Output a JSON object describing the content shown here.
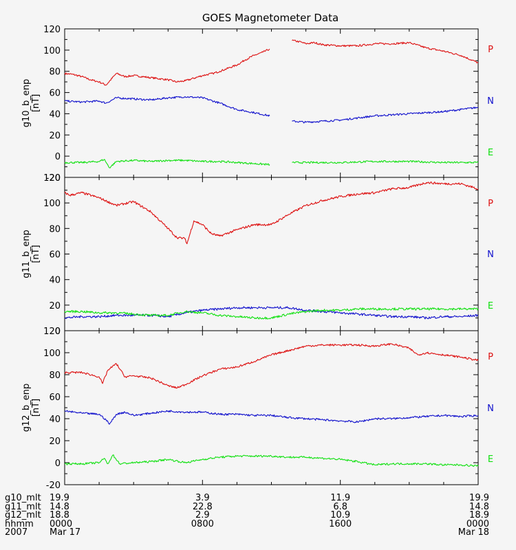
{
  "chart_data": [
    {
      "type": "line",
      "title": "GOES Magnetometer Data",
      "ylabel": "g10_b_enp",
      "yunit": "[nT]",
      "ylim": [
        -20,
        120
      ],
      "yticks": [
        "-20",
        "0",
        "20",
        "40",
        "60",
        "80",
        "100",
        "120"
      ],
      "xlim": [
        0,
        24
      ],
      "gaps": [
        [
          11.9,
          13.2
        ]
      ],
      "series": [
        {
          "name": "P",
          "color": "#dd1010",
          "x": [
            0,
            0.5,
            1,
            1.5,
            2,
            2.4,
            3,
            3.5,
            4,
            5,
            6,
            6.5,
            7,
            8,
            8.6,
            9,
            10,
            10.5,
            11,
            11.5,
            11.9,
            13.2,
            13.6,
            14,
            14.5,
            15,
            16,
            17,
            18,
            19,
            20,
            21,
            22,
            23,
            24
          ],
          "values": [
            78,
            77,
            75,
            72,
            70,
            67,
            78,
            75,
            76,
            74,
            72,
            70,
            71,
            76,
            78,
            80,
            86,
            91,
            95,
            98,
            101,
            109,
            108,
            106,
            107,
            105,
            104,
            104,
            106,
            106,
            107,
            102,
            99,
            95,
            88
          ]
        },
        {
          "name": "N",
          "color": "#1010cc",
          "x": [
            0,
            1,
            2,
            2.4,
            3,
            4,
            5,
            6,
            7,
            8,
            9,
            10,
            11,
            11.9,
            13.2,
            14,
            15,
            16,
            17,
            18,
            19,
            20,
            21,
            22,
            23,
            24
          ],
          "values": [
            52,
            51,
            52,
            50,
            55,
            54,
            53,
            55,
            56,
            55,
            50,
            44,
            41,
            38,
            33,
            32,
            33,
            34,
            36,
            38,
            39,
            40,
            41,
            42,
            44,
            46
          ]
        },
        {
          "name": "E",
          "color": "#10e010",
          "x": [
            0,
            1,
            2,
            2.3,
            2.6,
            3,
            4,
            5,
            6,
            7,
            8,
            9,
            10,
            11,
            11.9,
            13.2,
            14,
            16,
            18,
            20,
            22,
            24
          ],
          "values": [
            -6,
            -6,
            -5,
            -3,
            -11,
            -5,
            -4,
            -5,
            -4,
            -4,
            -5,
            -5,
            -6,
            -7,
            -8,
            -6,
            -6,
            -6,
            -5,
            -5,
            -6,
            -6
          ]
        }
      ]
    },
    {
      "type": "line",
      "ylabel": "g11_b_enp",
      "yunit": "[nT]",
      "ylim": [
        0,
        120
      ],
      "yticks": [
        "0",
        "20",
        "40",
        "60",
        "80",
        "100",
        "120"
      ],
      "xlim": [
        0,
        24
      ],
      "series": [
        {
          "name": "P",
          "color": "#dd1010",
          "x": [
            0,
            0.3,
            1,
            2,
            2.5,
            3,
            4,
            5,
            6,
            6.5,
            7,
            7.1,
            7.5,
            8,
            8.5,
            9,
            10,
            11,
            12,
            13,
            14,
            15,
            16,
            17,
            18,
            19,
            20,
            21,
            22,
            23,
            24
          ],
          "values": [
            108,
            106,
            108,
            104,
            101,
            98,
            101,
            93,
            80,
            73,
            72,
            68,
            86,
            83,
            76,
            74,
            79,
            83,
            83,
            91,
            98,
            102,
            105,
            107,
            108,
            111,
            112,
            116,
            115,
            115,
            111
          ]
        },
        {
          "name": "N",
          "color": "#1010cc",
          "x": [
            0,
            1,
            2,
            3,
            4,
            5,
            6,
            7,
            8,
            9,
            10,
            11,
            12,
            13,
            14,
            15,
            16,
            17,
            18,
            19,
            20,
            21,
            22,
            23,
            24
          ],
          "values": [
            10,
            11,
            11,
            12,
            12,
            12,
            11,
            14,
            16,
            17,
            18,
            18,
            18,
            18,
            16,
            15,
            14,
            13,
            12,
            11,
            11,
            10,
            11,
            11,
            12
          ]
        },
        {
          "name": "E",
          "color": "#10e010",
          "x": [
            0,
            1,
            2,
            3,
            4,
            5,
            6,
            7,
            8,
            9,
            10,
            11,
            12,
            13,
            14,
            15,
            16,
            17,
            18,
            19,
            20,
            21,
            22,
            23,
            24
          ],
          "values": [
            15,
            15,
            14,
            14,
            13,
            12,
            12,
            15,
            14,
            12,
            11,
            10,
            10,
            13,
            15,
            16,
            16,
            17,
            17,
            17,
            17,
            17,
            17,
            17,
            17
          ]
        }
      ]
    },
    {
      "type": "line",
      "ylabel": "g12_b_enp",
      "yunit": "[nT]",
      "ylim": [
        -20,
        120
      ],
      "yticks": [
        "-20",
        "0",
        "20",
        "40",
        "60",
        "80",
        "100",
        "120"
      ],
      "xlim": [
        0,
        24
      ],
      "series": [
        {
          "name": "P",
          "color": "#dd1010",
          "x": [
            0,
            1,
            2,
            2.2,
            2.5,
            3,
            3.5,
            4,
            5,
            6,
            6.5,
            7,
            8,
            9,
            10,
            11,
            12,
            13,
            14,
            15,
            16,
            17,
            18,
            19,
            20,
            20.5,
            21,
            22,
            23,
            24
          ],
          "values": [
            82,
            82,
            78,
            72,
            84,
            90,
            78,
            79,
            77,
            70,
            68,
            71,
            79,
            85,
            87,
            92,
            98,
            102,
            106,
            107,
            107,
            107,
            106,
            108,
            104,
            98,
            100,
            98,
            96,
            93
          ]
        },
        {
          "name": "N",
          "color": "#1010cc",
          "x": [
            0,
            1,
            2,
            2.4,
            2.6,
            3,
            3.5,
            4,
            5,
            6,
            7,
            8,
            9,
            10,
            11,
            12,
            13,
            14,
            15,
            16,
            17,
            18,
            19,
            20,
            21,
            22,
            23,
            24
          ],
          "values": [
            47,
            45,
            44,
            39,
            35,
            44,
            46,
            43,
            45,
            47,
            46,
            46,
            44,
            44,
            43,
            43,
            41,
            40,
            39,
            38,
            37,
            40,
            40,
            41,
            42,
            43,
            42,
            43
          ]
        },
        {
          "name": "E",
          "color": "#10e010",
          "x": [
            0,
            1,
            2,
            2.3,
            2.5,
            2.8,
            3.2,
            4,
            5,
            6,
            7,
            8,
            9,
            10,
            11,
            12,
            13,
            14,
            15,
            16,
            17,
            18,
            19,
            20,
            21,
            22,
            23,
            24
          ],
          "values": [
            -1,
            -1,
            0,
            4,
            -1,
            7,
            -1,
            0,
            1,
            3,
            0,
            3,
            5,
            6,
            6,
            6,
            5,
            5,
            4,
            3,
            1,
            -2,
            -1,
            -1,
            -1,
            -2,
            -2,
            -3
          ]
        }
      ]
    }
  ],
  "x_axis": {
    "ticks": [
      0,
      8,
      16,
      24
    ],
    "rows": [
      {
        "label": "g10_mlt",
        "values": [
          "19.9",
          "3.9",
          "11.9",
          "19.9"
        ]
      },
      {
        "label": "g11_mlt",
        "values": [
          "14.8",
          "22.8",
          "6.8",
          "14.8"
        ]
      },
      {
        "label": "g12_mlt",
        "values": [
          "18.8",
          "2.9",
          "10.9",
          "18.9"
        ]
      },
      {
        "label": "hhmm",
        "values": [
          "0000",
          "0800",
          "1600",
          "0000"
        ]
      },
      {
        "label": "2007",
        "values": [
          "Mar 17",
          "",
          "",
          "Mar 18"
        ]
      }
    ]
  },
  "colors": {
    "background": "#f5f5f5",
    "axis": "#000000",
    "P": "#dd1010",
    "N": "#1010cc",
    "E": "#10e010"
  }
}
